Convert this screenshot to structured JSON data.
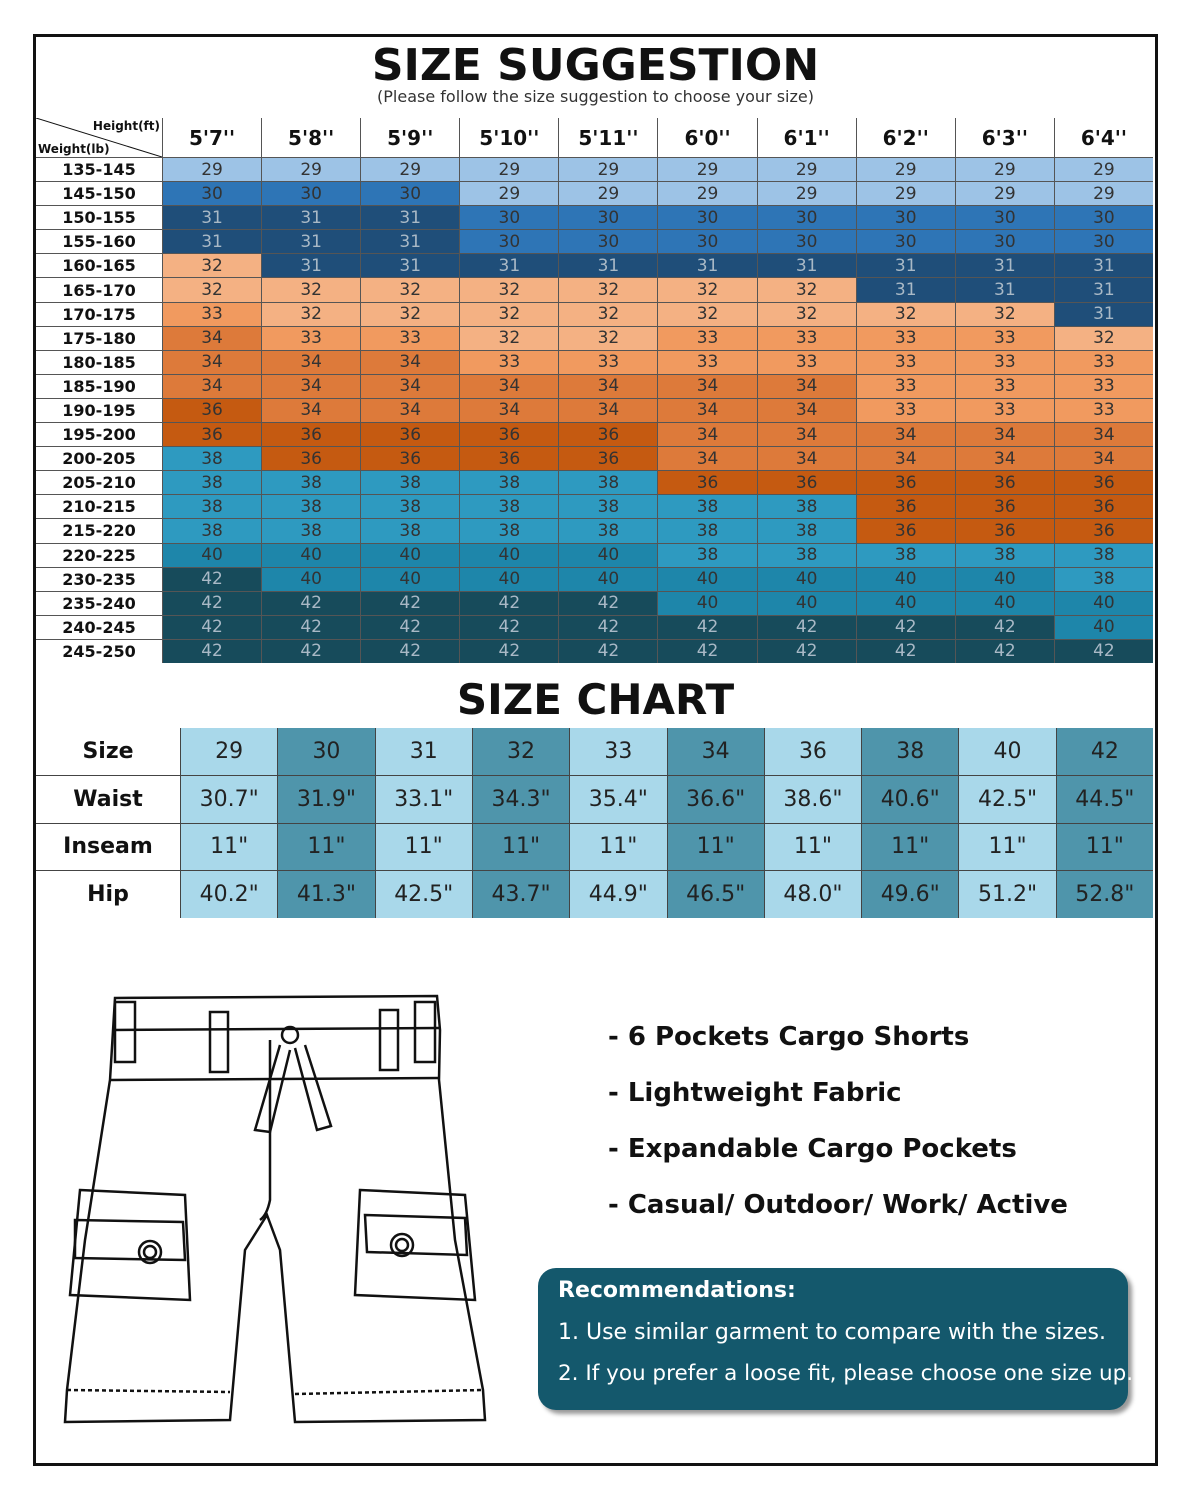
{
  "size_suggestion": {
    "title": "SIZE SUGGESTION",
    "subtitle": "(Please follow the size suggestion to choose your size)",
    "height_label": "Height(ft)",
    "weight_label": "Weight(lb)",
    "heights": [
      "5'7''",
      "5'8''",
      "5'9''",
      "5'10''",
      "5'11''",
      "6'0''",
      "6'1''",
      "6'2''",
      "6'3''",
      "6'4''"
    ],
    "rows": [
      {
        "weight": "135-145",
        "sizes": [
          29,
          29,
          29,
          29,
          29,
          29,
          29,
          29,
          29,
          29
        ]
      },
      {
        "weight": "145-150",
        "sizes": [
          30,
          30,
          30,
          29,
          29,
          29,
          29,
          29,
          29,
          29
        ]
      },
      {
        "weight": "150-155",
        "sizes": [
          31,
          31,
          31,
          30,
          30,
          30,
          30,
          30,
          30,
          30
        ]
      },
      {
        "weight": "155-160",
        "sizes": [
          31,
          31,
          31,
          30,
          30,
          30,
          30,
          30,
          30,
          30
        ]
      },
      {
        "weight": "160-165",
        "sizes": [
          32,
          31,
          31,
          31,
          31,
          31,
          31,
          31,
          31,
          31
        ]
      },
      {
        "weight": "165-170",
        "sizes": [
          32,
          32,
          32,
          32,
          32,
          32,
          32,
          31,
          31,
          31
        ]
      },
      {
        "weight": "170-175",
        "sizes": [
          33,
          32,
          32,
          32,
          32,
          32,
          32,
          32,
          32,
          31
        ]
      },
      {
        "weight": "175-180",
        "sizes": [
          34,
          33,
          33,
          32,
          32,
          33,
          33,
          33,
          33,
          32
        ]
      },
      {
        "weight": "180-185",
        "sizes": [
          34,
          34,
          34,
          33,
          33,
          33,
          33,
          33,
          33,
          33
        ]
      },
      {
        "weight": "185-190",
        "sizes": [
          34,
          34,
          34,
          34,
          34,
          34,
          34,
          33,
          33,
          33
        ]
      },
      {
        "weight": "190-195",
        "sizes": [
          36,
          34,
          34,
          34,
          34,
          34,
          34,
          33,
          33,
          33
        ]
      },
      {
        "weight": "195-200",
        "sizes": [
          36,
          36,
          36,
          36,
          36,
          34,
          34,
          34,
          34,
          34
        ]
      },
      {
        "weight": "200-205",
        "sizes": [
          38,
          36,
          36,
          36,
          36,
          34,
          34,
          34,
          34,
          34
        ]
      },
      {
        "weight": "205-210",
        "sizes": [
          38,
          38,
          38,
          38,
          38,
          36,
          36,
          36,
          36,
          36
        ]
      },
      {
        "weight": "210-215",
        "sizes": [
          38,
          38,
          38,
          38,
          38,
          38,
          38,
          36,
          36,
          36
        ]
      },
      {
        "weight": "215-220",
        "sizes": [
          38,
          38,
          38,
          38,
          38,
          38,
          38,
          36,
          36,
          36
        ]
      },
      {
        "weight": "220-225",
        "sizes": [
          40,
          40,
          40,
          40,
          40,
          38,
          38,
          38,
          38,
          38
        ]
      },
      {
        "weight": "230-235",
        "sizes": [
          42,
          40,
          40,
          40,
          40,
          40,
          40,
          40,
          40,
          38
        ]
      },
      {
        "weight": "235-240",
        "sizes": [
          42,
          42,
          42,
          42,
          42,
          40,
          40,
          40,
          40,
          40
        ]
      },
      {
        "weight": "240-245",
        "sizes": [
          42,
          42,
          42,
          42,
          42,
          42,
          42,
          42,
          42,
          40
        ]
      },
      {
        "weight": "245-250",
        "sizes": [
          42,
          42,
          42,
          42,
          42,
          42,
          42,
          42,
          42,
          42
        ]
      }
    ],
    "size_colors": {
      "29": "#9dc3e6",
      "30": "#2e75b6",
      "31": "#1f4e79",
      "32": "#f4b183",
      "33": "#f19a5f",
      "34": "#dd7a3a",
      "36": "#c55a11",
      "38": "#2e9ac0",
      "40": "#1e86aa",
      "42": "#174b5b"
    }
  },
  "size_chart": {
    "title": "SIZE CHART",
    "col_colors": [
      "#a9d8ea",
      "#4f95ab"
    ],
    "rows": [
      {
        "label": "Size",
        "values": [
          "29",
          "30",
          "31",
          "32",
          "33",
          "34",
          "36",
          "38",
          "40",
          "42"
        ]
      },
      {
        "label": "Waist",
        "values": [
          "30.7\"",
          "31.9\"",
          "33.1\"",
          "34.3\"",
          "35.4\"",
          "36.6\"",
          "38.6\"",
          "40.6\"",
          "42.5\"",
          "44.5\""
        ]
      },
      {
        "label": "Inseam",
        "values": [
          "11\"",
          "11\"",
          "11\"",
          "11\"",
          "11\"",
          "11\"",
          "11\"",
          "11\"",
          "11\"",
          "11\""
        ]
      },
      {
        "label": "Hip",
        "values": [
          "40.2\"",
          "41.3\"",
          "42.5\"",
          "43.7\"",
          "44.9\"",
          "46.5\"",
          "48.0\"",
          "49.6\"",
          "51.2\"",
          "52.8\""
        ]
      }
    ]
  },
  "features": [
    "- 6 Pockets Cargo Shorts",
    "- Lightweight Fabric",
    "- Expandable Cargo Pockets",
    "- Casual/ Outdoor/ Work/ Active"
  ],
  "recommendations": {
    "title": "Recommendations:",
    "items": [
      "1. Use similar garment to compare with the sizes.",
      "2. If you prefer a loose fit, please choose one size up."
    ]
  }
}
